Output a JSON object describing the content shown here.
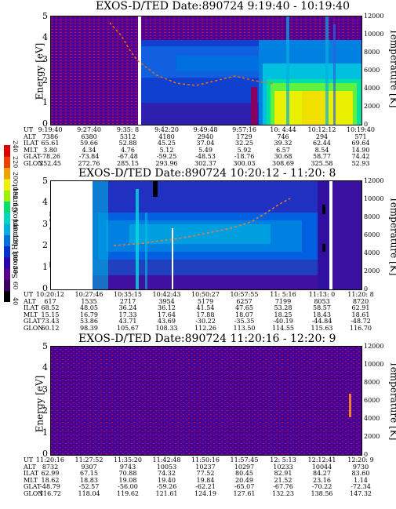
{
  "panels": [
    {
      "title": "EXOS-D/TED   Date:890724  9:19:40 - 10:19:40",
      "ylabel_left": "Energy [eV]",
      "ylabel_right": "Temperature [K]",
      "yticks_left": [
        "0",
        "1",
        "2",
        "3",
        "4",
        "5"
      ],
      "yticks_right": [
        "0",
        "2000",
        "4000",
        "6000",
        "8000",
        "10000",
        "12000"
      ],
      "orbit": {
        "labels": [
          "UT",
          "ALT",
          "ILAT",
          "MLT",
          "GLAT",
          "GLON"
        ],
        "columns": [
          [
            "9:19:40",
            "7386",
            "65.61",
            "3.80",
            "-78.26",
            "252.45"
          ],
          [
            "9:27:40",
            "6380",
            "59.66",
            "4.34",
            "-73.84",
            "272.76"
          ],
          [
            "9:35: 8",
            "5312",
            "52.88",
            "4.76",
            "-67.48",
            "285.15"
          ],
          [
            "9:42:20",
            "4180",
            "45.25",
            "5.12",
            "-59.25",
            "293.96"
          ],
          [
            "9:49:48",
            "2940",
            "37.04",
            "5.49",
            "-48.53",
            "302.37"
          ],
          [
            "9:57:16",
            "1729",
            "32.25",
            "5.92",
            "-18.76",
            "300.03"
          ],
          [
            "10: 4:44",
            "746",
            "39.32",
            "6.57",
            "30.68",
            "308.69"
          ],
          [
            "10:12:12",
            "294",
            "62.44",
            "8.54",
            "58.77",
            "325.58"
          ],
          [
            "10:19:40",
            "571",
            "69.64",
            "14.90",
            "74.42",
            "52.93"
          ]
        ]
      }
    },
    {
      "title": "EXOS-D/TED   Date:890724  10:20:12 - 11:20: 8",
      "ylabel_left": "Energy [eV]",
      "ylabel_right": "Temperature [K]",
      "yticks_left": [
        "0",
        "1",
        "2",
        "3",
        "4",
        "5"
      ],
      "yticks_right": [
        "0",
        "2000",
        "4000",
        "6000",
        "8000",
        "10000",
        "12000"
      ],
      "orbit": {
        "labels": [
          "UT",
          "ALT",
          "ILAT",
          "MLT",
          "GLAT",
          "GLON"
        ],
        "columns": [
          [
            "10:20:12",
            "617",
            "68.52",
            "15.15",
            "73.43",
            "60.12"
          ],
          [
            "10:27:46",
            "1535",
            "48.05",
            "16.79",
            "53.86",
            "98.39"
          ],
          [
            "10:35:15",
            "2717",
            "36.24",
            "17.33",
            "43.71",
            "105.67"
          ],
          [
            "10:42:43",
            "3954",
            "36.12",
            "17.64",
            "43.69",
            "108.33"
          ],
          [
            "10:50:27",
            "5179",
            "41.54",
            "17.88",
            "-30.22",
            "112.26"
          ],
          [
            "10:57:55",
            "6257",
            "47.65",
            "18.07",
            "-35.35",
            "113.50"
          ],
          [
            "11: 5:16",
            "7199",
            "53.28",
            "18.25",
            "-40.19",
            "114.55"
          ],
          [
            "11:13: 0",
            "8053",
            "58.57",
            "18.43",
            "-44.84",
            "115.63"
          ],
          [
            "11:20: 8",
            "8720",
            "62.91",
            "18.61",
            "-48.72",
            "116.70"
          ]
        ]
      }
    },
    {
      "title": "EXOS-D/TED   Date:890724  11:20:16 - 12:20: 9",
      "ylabel_left": "Energy [eV]",
      "ylabel_right": "Temperature [K]",
      "yticks_left": [
        "0",
        "1",
        "2",
        "3",
        "4",
        "5"
      ],
      "yticks_right": [
        "0",
        "2000",
        "4000",
        "6000",
        "8000",
        "10000",
        "12000"
      ],
      "orbit": {
        "labels": [
          "UT",
          "ALT",
          "ILAT",
          "MLT",
          "GLAT",
          "GLON"
        ],
        "columns": [
          [
            "11:20:16",
            "8732",
            "62.99",
            "18.62",
            "-48.79",
            "116.72"
          ],
          [
            "11:27:52",
            "9307",
            "67.15",
            "18.83",
            "-52.57",
            "118.04"
          ],
          [
            "11:35:20",
            "9743",
            "70.88",
            "19.08",
            "-56.00",
            "119.62"
          ],
          [
            "11:42:48",
            "10053",
            "74.32",
            "19.40",
            "-59.26",
            "121.61"
          ],
          [
            "11:50:16",
            "10237",
            "77.52",
            "19.84",
            "-62.21",
            "124.19"
          ],
          [
            "11:57:45",
            "10297",
            "80.45",
            "20.49",
            "-65.07",
            "127.61"
          ],
          [
            "12: 5:13",
            "10233",
            "82.91",
            "21.52",
            "-67.76",
            "132.23"
          ],
          [
            "12:12:41",
            "10044",
            "84.27",
            "23.16",
            "-70.22",
            "138.56"
          ],
          [
            "12:20: 9",
            "9730",
            "83.60",
            "1.14",
            "-72.34",
            "147.32"
          ]
        ]
      }
    }
  ],
  "colorbar": {
    "label": "Second Harmonic Current",
    "ticks": [
      "40",
      "60",
      "80",
      "100",
      "120",
      "140",
      "160",
      "180",
      "200",
      "220",
      "240"
    ],
    "colors": [
      "#000000",
      "#3a0060",
      "#5a0090",
      "#2a00b0",
      "#0030d0",
      "#0070e0",
      "#00b0e0",
      "#00d8c0",
      "#00e070",
      "#a0f000",
      "#f0f000",
      "#f0a000",
      "#f04000",
      "#e00000"
    ]
  },
  "chart_data": [
    {
      "type": "heatmap",
      "title": "EXOS-D/TED   Date:890724  9:19:40 - 10:19:40",
      "xlabel": "UT",
      "ylabel": "Energy [eV]",
      "y2label": "Temperature [K]",
      "ylim": [
        0,
        5
      ],
      "y2lim": [
        0,
        12000
      ],
      "x": [
        "9:19:40",
        "9:27:40",
        "9:35: 8",
        "9:42:20",
        "9:49:48",
        "9:57:16",
        "10: 4:44",
        "10:12:12",
        "10:19:40"
      ],
      "temperature_trace_K": [
        null,
        null,
        7200,
        5200,
        4500,
        4800,
        4700,
        null,
        null
      ]
    },
    {
      "type": "heatmap",
      "title": "EXOS-D/TED   Date:890724  10:20:12 - 11:20: 8",
      "xlabel": "UT",
      "ylabel": "Energy [eV]",
      "y2label": "Temperature [K]",
      "ylim": [
        0,
        5
      ],
      "y2lim": [
        0,
        12000
      ],
      "x": [
        "10:20:12",
        "10:27:46",
        "10:35:15",
        "10:42:43",
        "10:50:27",
        "10:57:55",
        "11: 5:16",
        "11:13: 0",
        "11:20: 8"
      ],
      "temperature_trace_K": [
        null,
        null,
        5200,
        6000,
        6500,
        7500,
        9500,
        11500,
        null
      ]
    },
    {
      "type": "heatmap",
      "title": "EXOS-D/TED   Date:890724  11:20:16 - 12:20: 9",
      "xlabel": "UT",
      "ylabel": "Energy [eV]",
      "y2label": "Temperature [K]",
      "ylim": [
        0,
        5
      ],
      "y2lim": [
        0,
        12000
      ],
      "x": [
        "11:20:16",
        "11:27:52",
        "11:35:20",
        "11:42:48",
        "11:50:16",
        "11:57:45",
        "12: 5:13",
        "12:12:41",
        "12:20: 9"
      ],
      "temperature_trace_K": [
        null,
        null,
        null,
        null,
        null,
        null,
        null,
        null,
        5200
      ]
    }
  ]
}
